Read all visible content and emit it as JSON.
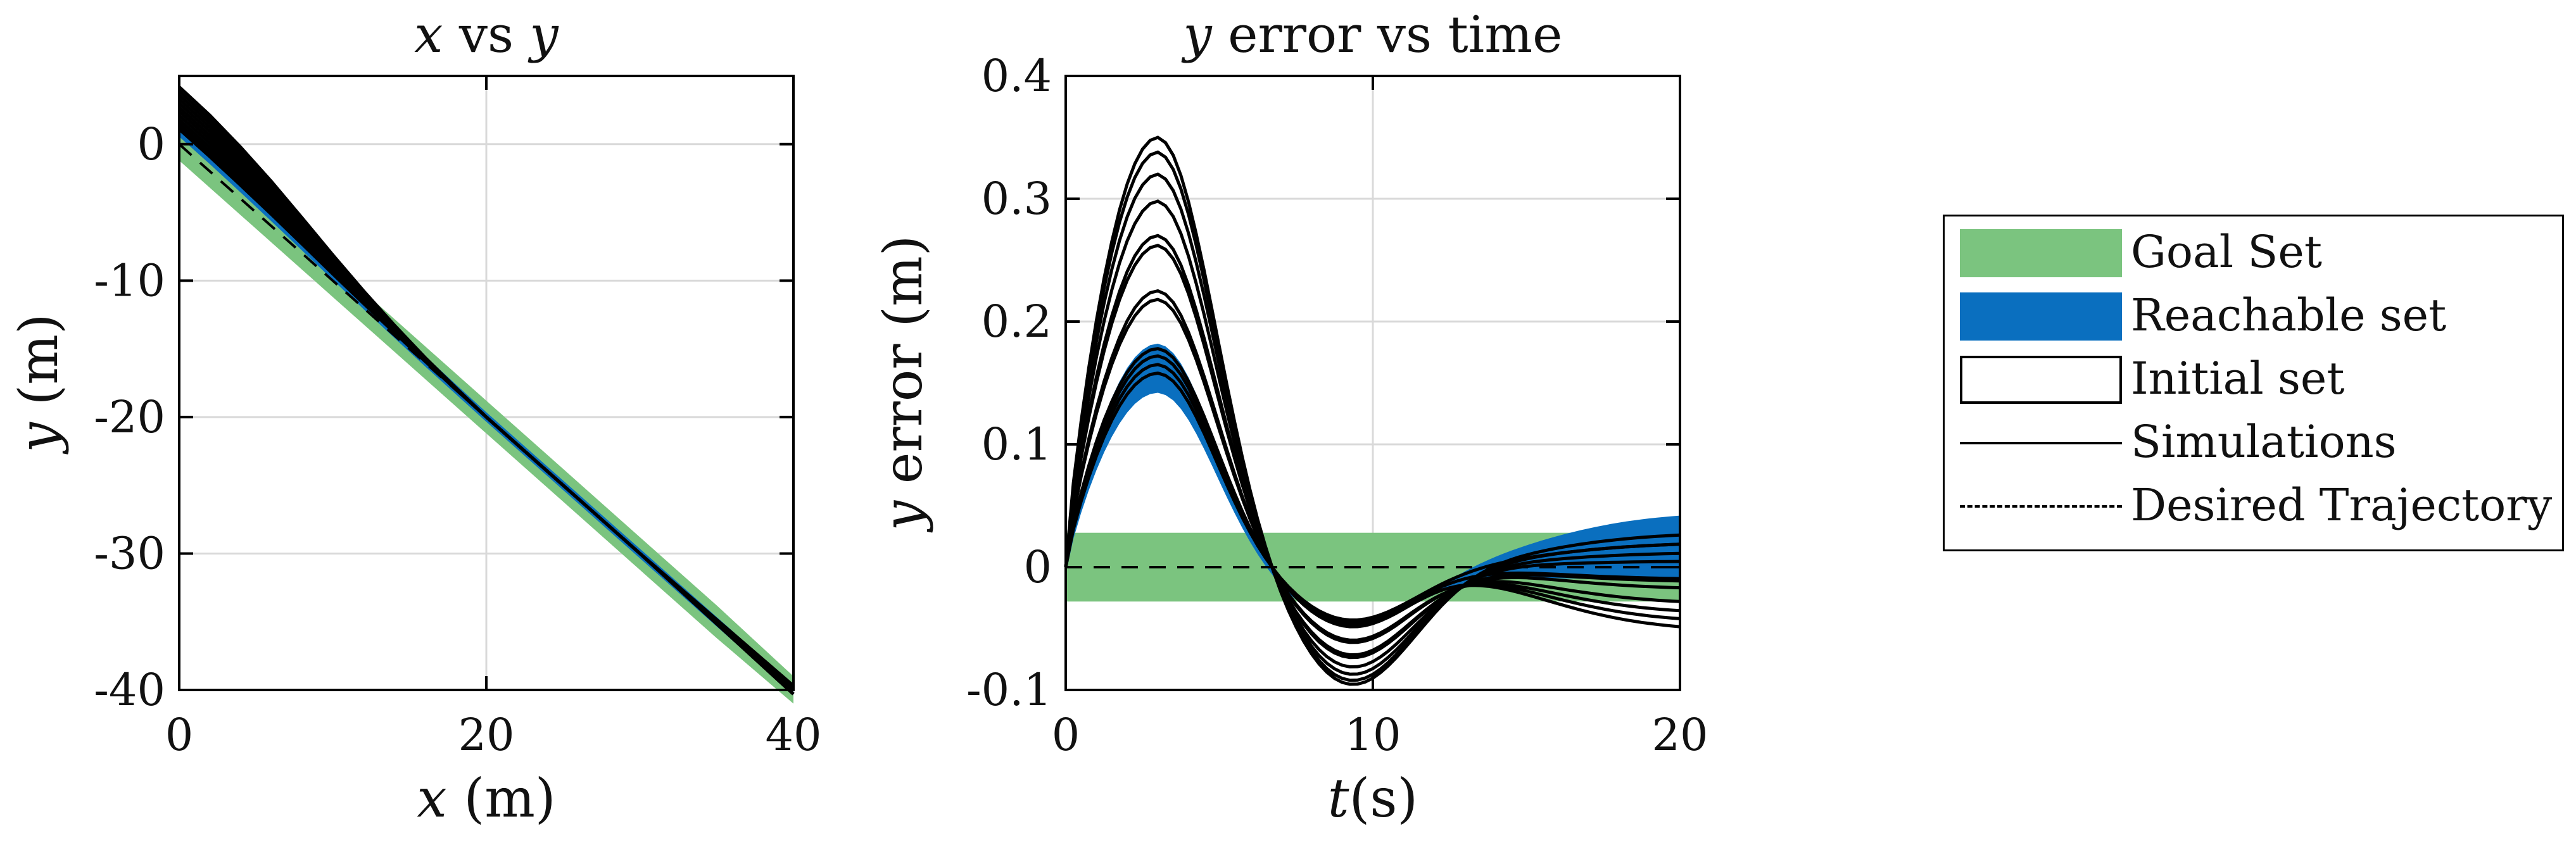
{
  "colors": {
    "goal": "#7bc47f",
    "reach": "#0a6fbf",
    "sim": "#000000",
    "grid": "#d9d9d9"
  },
  "chart_data": [
    {
      "type": "line",
      "title_parts": [
        "x",
        " vs ",
        "y"
      ],
      "xlabel_var": "x",
      "xlabel_unit": " (m)",
      "ylabel_var": "y",
      "ylabel_unit": " (m)",
      "xlim": [
        0,
        40
      ],
      "ylim": [
        -40,
        5
      ],
      "xticks": [
        0,
        20,
        40
      ],
      "xtick_labels": [
        "0",
        "20",
        "40"
      ],
      "yticks": [
        0,
        -10,
        -20,
        -30,
        -40
      ],
      "ytick_labels": [
        "0",
        "-10",
        "-20",
        "-30",
        "-40"
      ],
      "grid": true,
      "series": [
        {
          "name": "Goal Set",
          "kind": "band",
          "x": [
            0,
            5,
            10,
            15,
            20,
            25,
            30,
            35,
            40
          ],
          "lower": [
            -1.2,
            -6.2,
            -11.2,
            -16.2,
            -21.2,
            -26.2,
            -31.2,
            -36.2,
            -41.0
          ],
          "upper": [
            1.2,
            -3.8,
            -8.8,
            -13.8,
            -18.8,
            -23.8,
            -28.8,
            -33.8,
            -39.0
          ]
        },
        {
          "name": "Desired Trajectory",
          "kind": "dashed",
          "x": [
            0,
            40
          ],
          "y": [
            0,
            -40
          ]
        },
        {
          "name": "Simulations",
          "x": [
            0,
            2,
            4,
            6,
            8,
            10,
            12,
            14,
            16,
            18,
            20,
            25,
            30,
            35,
            40
          ],
          "offsets": [
            4.2,
            3.9,
            3.6,
            3.3,
            3.0,
            2.7,
            2.4,
            2.1,
            1.8,
            1.5,
            1.3,
            1.1
          ],
          "decay": [
            1.0,
            0.98,
            0.9,
            0.78,
            0.62,
            0.45,
            0.3,
            0.18,
            0.09,
            0.04,
            0.0,
            0.0,
            0.0,
            0.0,
            0.0
          ]
        }
      ]
    },
    {
      "type": "line",
      "title_parts": [
        "y",
        " error vs time",
        ""
      ],
      "xlabel_var": "t",
      "xlabel_unit": "(s)",
      "ylabel_var": "y",
      "ylabel_unit": " error (m)",
      "xlim": [
        0,
        20
      ],
      "ylim": [
        -0.1,
        0.4
      ],
      "xticks": [
        0,
        10,
        20
      ],
      "xtick_labels": [
        "0",
        "10",
        "20"
      ],
      "yticks": [
        0.4,
        0.3,
        0.2,
        0.1,
        0,
        -0.1
      ],
      "ytick_labels": [
        "0.4",
        "0.3",
        "0.2",
        "0.1",
        "0",
        "-0.1"
      ],
      "grid": true,
      "goal_band": [
        -0.028,
        0.028
      ],
      "desired": 0,
      "peaks": [
        0.35,
        0.338,
        0.32,
        0.298,
        0.27,
        0.262,
        0.225,
        0.218,
        0.178,
        0.172,
        0.165,
        0.158
      ],
      "endpoints": [
        0.028,
        0.02,
        0.012,
        0.005,
        -0.012,
        -0.018,
        -0.03,
        -0.038,
        -0.045,
        -0.052,
        -0.01,
        0.02
      ],
      "reach_peak": [
        0.148,
        0.182
      ],
      "reach_end": [
        -0.005,
        0.045
      ]
    }
  ],
  "legend": {
    "items": [
      {
        "label": "Goal Set",
        "kind": "goal"
      },
      {
        "label": "Reachable set",
        "kind": "reach"
      },
      {
        "label": "Initial set",
        "kind": "box"
      },
      {
        "label": "Simulations",
        "kind": "line"
      },
      {
        "label": "Desired Trajectory",
        "kind": "dash"
      }
    ]
  }
}
